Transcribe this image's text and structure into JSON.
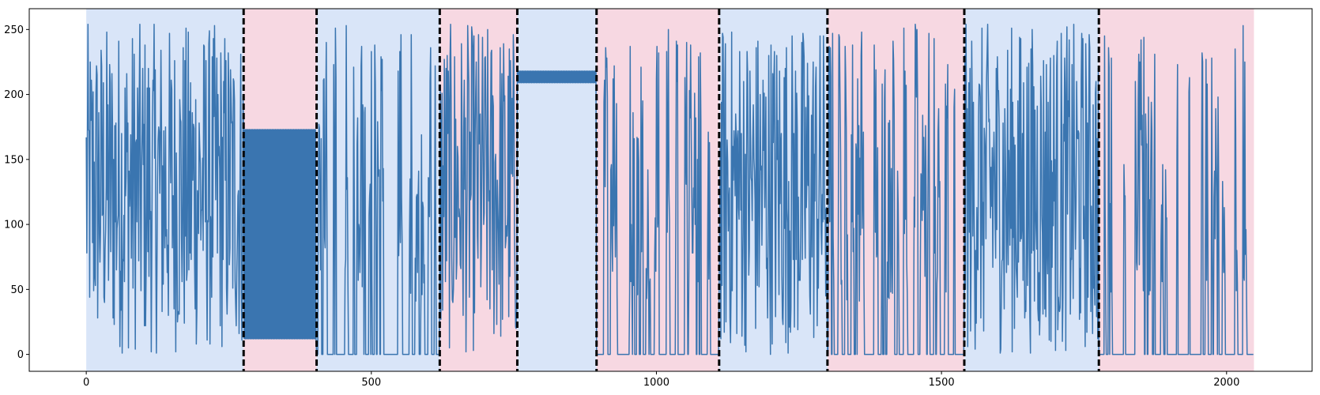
{
  "chart_data": {
    "type": "line",
    "title": "",
    "xlabel": "",
    "ylabel": "",
    "xlim": [
      -100,
      2150
    ],
    "ylim": [
      -13,
      266
    ],
    "xticks": [
      0,
      500,
      1000,
      1500,
      2000
    ],
    "yticks": [
      0,
      50,
      100,
      150,
      200,
      250
    ],
    "xtick_labels": [
      "0",
      "500",
      "1000",
      "1500",
      "2000"
    ],
    "ytick_labels": [
      "0",
      "50",
      "100",
      "150",
      "200",
      "250"
    ],
    "grid": false,
    "legend": "none",
    "line_color": "#3a75b0",
    "segment_colors": [
      "#d9e5f8",
      "#f7d8e2"
    ],
    "changepoints": [
      276,
      404,
      620,
      756,
      895,
      1110,
      1300,
      1540,
      1776
    ],
    "regimes": [
      {
        "start": 0,
        "end": 276,
        "shade": "blue",
        "pattern": "noise",
        "min": 0,
        "max": 255
      },
      {
        "start": 276,
        "end": 404,
        "shade": "pink",
        "pattern": "alternating",
        "low": 12,
        "high": 173
      },
      {
        "start": 404,
        "end": 620,
        "shade": "blue",
        "pattern": "sparse_spikes",
        "min": 0,
        "max": 255
      },
      {
        "start": 620,
        "end": 756,
        "shade": "pink",
        "pattern": "noise",
        "min": 0,
        "max": 255
      },
      {
        "start": 756,
        "end": 895,
        "shade": "blue",
        "pattern": "alternating",
        "low": 209,
        "high": 218
      },
      {
        "start": 895,
        "end": 1110,
        "shade": "pink",
        "pattern": "sparse_spikes",
        "min": 0,
        "max": 255
      },
      {
        "start": 1110,
        "end": 1300,
        "shade": "blue",
        "pattern": "noise",
        "min": 0,
        "max": 255
      },
      {
        "start": 1300,
        "end": 1540,
        "shade": "pink",
        "pattern": "sparse_spikes",
        "min": 0,
        "max": 255
      },
      {
        "start": 1540,
        "end": 1776,
        "shade": "blue",
        "pattern": "noise",
        "min": 0,
        "max": 255
      },
      {
        "start": 1776,
        "end": 2048,
        "shade": "pink",
        "pattern": "sparse_spikes",
        "min": 0,
        "max": 255
      }
    ]
  }
}
